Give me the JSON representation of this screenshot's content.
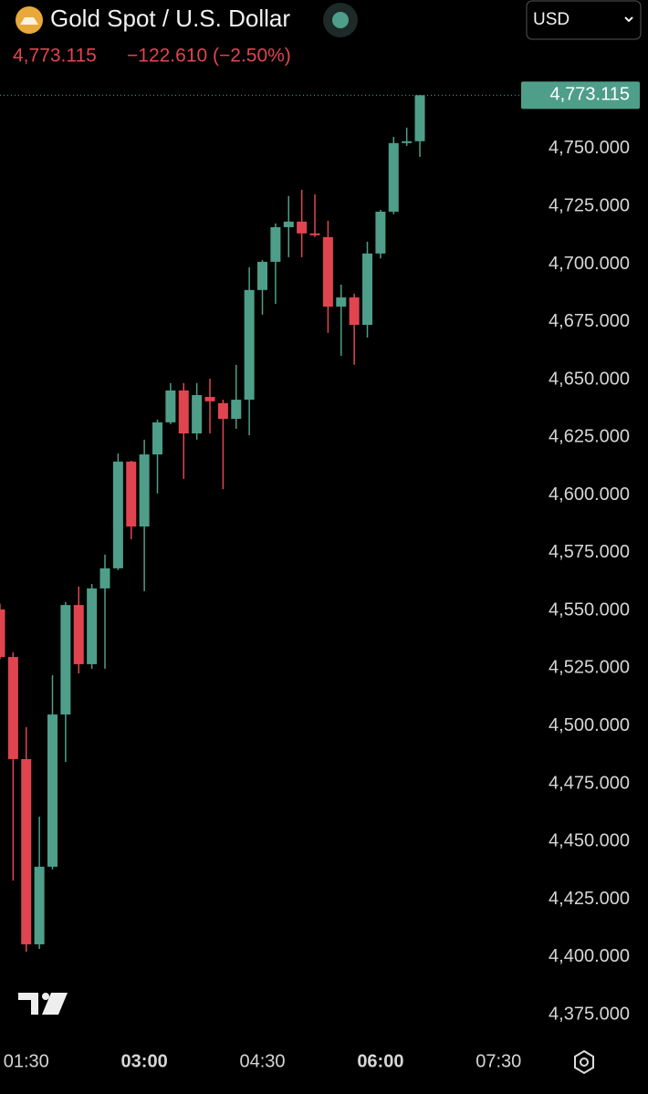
{
  "chart_data": {
    "type": "candlestick",
    "title": "Gold Spot / U.S. Dollar",
    "price": "4,773.115",
    "change": "−122.610 (−2.50%)",
    "currency": "USD",
    "last_price": {
      "value": 4773.115,
      "label": "4,773.115"
    },
    "x": [
      0,
      1,
      2,
      3,
      4,
      5,
      6,
      7,
      8,
      9,
      10,
      11,
      12,
      13,
      14,
      15,
      16,
      17,
      18,
      19,
      20,
      21,
      22,
      23,
      24,
      25,
      26,
      27,
      28,
      29,
      30,
      31,
      32
    ],
    "open": [
      4550.5,
      4529.9,
      4485.7,
      4405.5,
      4439.1,
      4505,
      4552.4,
      4526.8,
      4559.6,
      4568.3,
      4614.5,
      4586.4,
      4617.6,
      4631.5,
      4645.3,
      4626.7,
      4642.5,
      4639.8,
      4633,
      4641.3,
      4688.8,
      4701,
      4716,
      4718.4,
      4713.3,
      4711.7,
      4681.6,
      4685.6,
      4673.7,
      4704.6,
      4722.7,
      4752.4,
      4753.2
    ],
    "high": [
      4553,
      4531.9,
      4499.5,
      4460.8,
      4522,
      4553.6,
      4560.4,
      4561.5,
      4574.2,
      4618,
      4614.9,
      4624,
      4632.7,
      4648.5,
      4648.5,
      4648.5,
      4650.4,
      4641.3,
      4656.4,
      4698.6,
      4701.8,
      4717.6,
      4729.5,
      4732.2,
      4730.2,
      4718.8,
      4691.1,
      4687.2,
      4709.7,
      4723.5,
      4755.1,
      4759.1,
      4773.115
    ],
    "low": [
      4529,
      4433.1,
      4402.3,
      4403.5,
      4437.9,
      4484.5,
      4522.8,
      4524.8,
      4524.8,
      4567.5,
      4580.9,
      4558.4,
      4600.7,
      4630.7,
      4607,
      4624,
      4626.7,
      4602.6,
      4628.7,
      4625.9,
      4678.1,
      4682.8,
      4703,
      4703,
      4711.7,
      4670.2,
      4660.3,
      4656.4,
      4668.2,
      4702.5,
      4721.6,
      4751.2,
      4746.4
    ],
    "close": [
      4529.9,
      4485.7,
      4405.5,
      4439.1,
      4505,
      4552.4,
      4526.8,
      4559.6,
      4568.3,
      4614.5,
      4586.4,
      4617.6,
      4631.5,
      4645.3,
      4626.7,
      4643.3,
      4640.6,
      4633,
      4641.3,
      4688.8,
      4701,
      4716,
      4718.4,
      4713.3,
      4712.5,
      4681.6,
      4685.6,
      4673.7,
      4704.6,
      4722.7,
      4752.4,
      4753.2,
      4773.115
    ],
    "up_color": "#4e9e8a",
    "down_color": "#e0454f",
    "xlim": [
      0,
      39.65
    ],
    "xticks": [
      {
        "value": 2,
        "label": "01:30"
      },
      {
        "value": 11,
        "label": "03:00"
      },
      {
        "value": 20,
        "label": "04:30"
      },
      {
        "value": 29,
        "label": "06:00"
      },
      {
        "value": 38,
        "label": "07:30"
      }
    ],
    "ylim": [
      4364,
      4778.8
    ],
    "yticks": [
      {
        "value": 4375,
        "label": "4,375.000"
      },
      {
        "value": 4400,
        "label": "4,400.000"
      },
      {
        "value": 4425,
        "label": "4,425.000"
      },
      {
        "value": 4450,
        "label": "4,450.000"
      },
      {
        "value": 4475,
        "label": "4,475.000"
      },
      {
        "value": 4500,
        "label": "4,500.000"
      },
      {
        "value": 4525,
        "label": "4,525.000"
      },
      {
        "value": 4550,
        "label": "4,550.000"
      },
      {
        "value": 4575,
        "label": "4,575.000"
      },
      {
        "value": 4600,
        "label": "4,600.000"
      },
      {
        "value": 4625,
        "label": "4,625.000"
      },
      {
        "value": 4650,
        "label": "4,650.000"
      },
      {
        "value": 4675,
        "label": "4,675.000"
      },
      {
        "value": 4700,
        "label": "4,700.000"
      },
      {
        "value": 4725,
        "label": "4,725.000"
      },
      {
        "value": 4750,
        "label": "4,750.000"
      }
    ]
  }
}
